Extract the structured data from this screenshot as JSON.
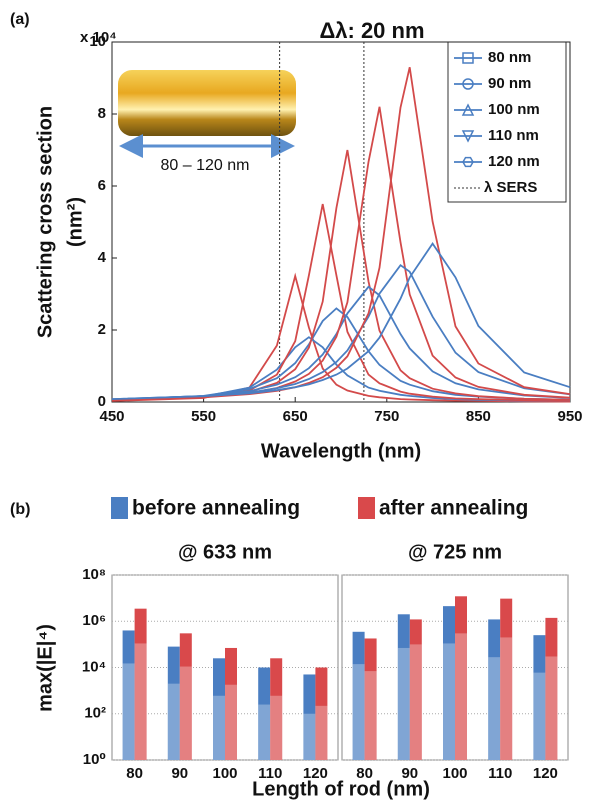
{
  "chart_data": [
    {
      "type": "line",
      "panel_label": "(a)",
      "title": "Δλ: 20 nm",
      "multiplier": "x 10⁴",
      "ylabel": [
        "Scattering cross section",
        "(nm²)"
      ],
      "xlabel": "Wavelength (nm)",
      "inset_label": "80 – 120 nm",
      "xlim": [
        450,
        950
      ],
      "ylim": [
        0,
        10
      ],
      "xticks": [
        450,
        550,
        650,
        750,
        850,
        950
      ],
      "yticks": [
        0,
        2,
        4,
        6,
        8,
        10
      ],
      "x": [
        450,
        550,
        600,
        630,
        650,
        665,
        680,
        695,
        707,
        730,
        742,
        765,
        775,
        800,
        825,
        850,
        900,
        950
      ],
      "color": "#4a7ec2",
      "color_annealed": "#d34a4a",
      "series": [
        {
          "name": "80 nm",
          "marker": "square",
          "values": [
            0.05,
            0.15,
            0.4,
            0.9,
            1.52,
            1.8,
            1.52,
            1.04,
            0.74,
            0.4,
            0.31,
            0.2,
            0.17,
            0.11,
            0.08,
            0.06,
            0.04,
            0.03
          ],
          "values_annealed": [
            0.03,
            0.11,
            0.4,
            1.57,
            3.5,
            2.07,
            0.93,
            0.48,
            0.32,
            0.17,
            0.13,
            0.08,
            0.07,
            0.05,
            0.04,
            0.03,
            0.02,
            0.01
          ]
        },
        {
          "name": "90 nm",
          "marker": "circle",
          "values": [
            0.06,
            0.17,
            0.36,
            0.66,
            1.08,
            1.6,
            2.25,
            2.6,
            2.36,
            1.41,
            1.03,
            0.59,
            0.48,
            0.3,
            0.2,
            0.15,
            0.09,
            0.06
          ],
          "values_annealed": [
            0.04,
            0.13,
            0.32,
            0.76,
            1.69,
            3.52,
            5.5,
            3.52,
            1.95,
            0.76,
            0.52,
            0.29,
            0.23,
            0.15,
            0.1,
            0.08,
            0.05,
            0.03
          ]
        },
        {
          "name": "100 nm",
          "marker": "triangle-up",
          "values": [
            0.07,
            0.16,
            0.3,
            0.48,
            0.69,
            0.94,
            1.32,
            1.89,
            2.46,
            3.2,
            2.96,
            1.89,
            1.49,
            0.85,
            0.52,
            0.35,
            0.18,
            0.11
          ],
          "values_annealed": [
            0.05,
            0.13,
            0.28,
            0.53,
            0.91,
            1.51,
            2.79,
            5.39,
            7.0,
            3.35,
            1.98,
            0.88,
            0.66,
            0.37,
            0.24,
            0.16,
            0.09,
            0.06
          ]
        },
        {
          "name": "110 nm",
          "marker": "triangle-down",
          "values": [
            0.08,
            0.16,
            0.26,
            0.38,
            0.5,
            0.64,
            0.83,
            1.11,
            1.43,
            2.37,
            3.01,
            3.8,
            3.62,
            2.37,
            1.37,
            0.83,
            0.38,
            0.21
          ],
          "values_annealed": [
            0.06,
            0.14,
            0.25,
            0.39,
            0.57,
            0.78,
            1.15,
            1.81,
            2.77,
            6.67,
            8.2,
            4.44,
            2.99,
            1.29,
            0.68,
            0.42,
            0.2,
            0.12
          ]
        },
        {
          "name": "120 nm",
          "marker": "hexagon",
          "values": [
            0.08,
            0.16,
            0.24,
            0.33,
            0.41,
            0.49,
            0.61,
            0.76,
            0.93,
            1.41,
            1.79,
            2.87,
            3.46,
            4.4,
            3.46,
            2.11,
            0.82,
            0.41
          ],
          "values_annealed": [
            0.06,
            0.13,
            0.22,
            0.31,
            0.41,
            0.53,
            0.69,
            0.95,
            1.27,
            2.46,
            3.73,
            8.18,
            9.3,
            5.01,
            2.1,
            1.07,
            0.41,
            0.22
          ]
        }
      ],
      "reference_lines": {
        "name": "λ SERS",
        "values": [
          633,
          725
        ]
      }
    },
    {
      "type": "bar",
      "panel_label": "(b)",
      "ylabel": "max(|E|⁴)",
      "xlabel": "Length of rod (nm)",
      "yscale": "log",
      "ylim": [
        1,
        100000000
      ],
      "grid": true,
      "yticks": [
        {
          "value": 1,
          "label": "10⁰"
        },
        {
          "value": 100,
          "label": "10²"
        },
        {
          "value": 10000,
          "label": "10⁴"
        },
        {
          "value": 1000000,
          "label": "10⁶"
        },
        {
          "value": 100000000,
          "label": "10⁸"
        }
      ],
      "categories": [
        "80",
        "90",
        "100",
        "110",
        "120"
      ],
      "series": [
        {
          "name": "before annealing",
          "color": "#4a7ec2"
        },
        {
          "name": "after annealing",
          "color": "#d9494b"
        }
      ],
      "panels": [
        {
          "title": "@ 633 nm",
          "series": [
            {
              "values": [
                400000,
                80000,
                25000,
                10000,
                5000
              ],
              "inner_values": [
                15000,
                2000,
                600,
                250,
                100
              ]
            },
            {
              "values": [
                3500000,
                300000,
                70000,
                25000,
                10000
              ],
              "inner_values": [
                110000,
                11000,
                1800,
                600,
                220
              ]
            }
          ]
        },
        {
          "title": "@ 725 nm",
          "series": [
            {
              "values": [
                350000,
                2000000,
                4500000,
                1200000,
                250000
              ],
              "inner_values": [
                14000,
                70000,
                110000,
                28000,
                6000
              ]
            },
            {
              "values": [
                180000,
                1200000,
                12000000,
                9500000,
                1400000
              ],
              "inner_values": [
                7000,
                100000,
                300000,
                200000,
                30000
              ]
            }
          ]
        }
      ]
    }
  ]
}
